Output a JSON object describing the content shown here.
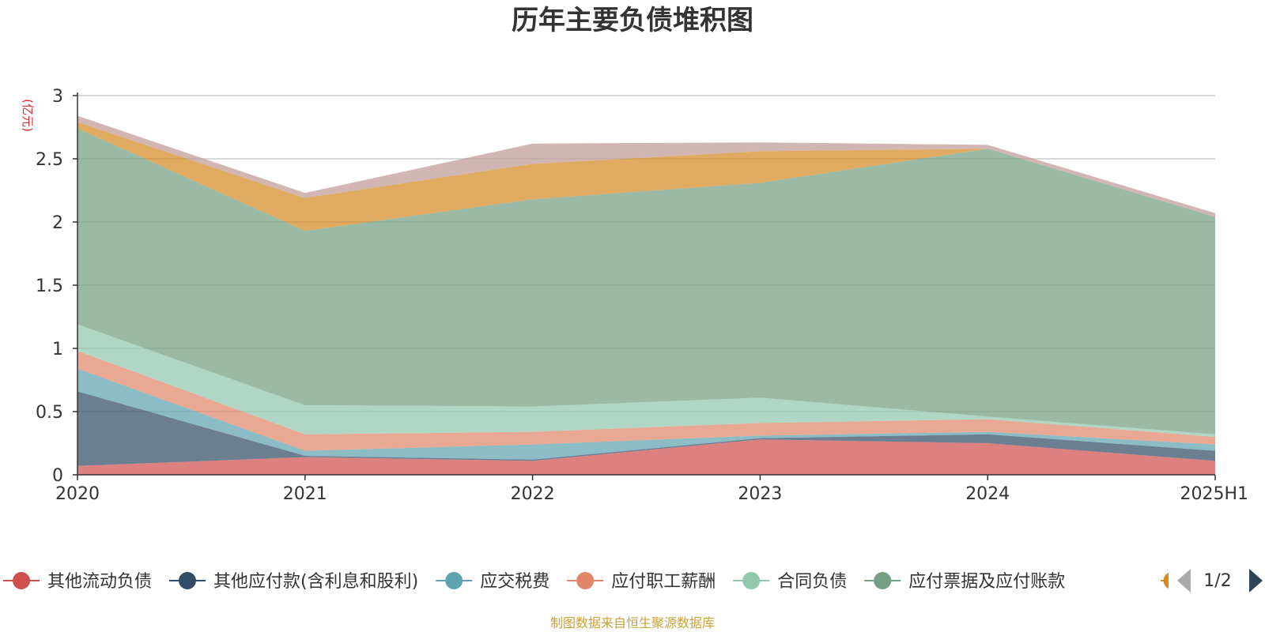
{
  "chart_data": {
    "type": "area",
    "stacked": true,
    "title": "历年主要负债堆积图",
    "ylabel": "(亿元)",
    "xlabel": "",
    "categories": [
      "2020",
      "2021",
      "2022",
      "2023",
      "2024",
      "2025H1"
    ],
    "ylim": [
      0,
      3
    ],
    "yticks": [
      "0",
      "0.5",
      "1",
      "1.5",
      "2",
      "2.5",
      "3"
    ],
    "grid": true,
    "legend_position": "bottom",
    "series": [
      {
        "name": "其他流动负债",
        "color": "#d0504f",
        "values": [
          0.07,
          0.14,
          0.11,
          0.28,
          0.25,
          0.11
        ]
      },
      {
        "name": "其他应付款(含利息和股利)",
        "color": "#334d66",
        "values": [
          0.59,
          0.01,
          0.01,
          0.01,
          0.07,
          0.08
        ]
      },
      {
        "name": "应交税费",
        "color": "#5fa2b0",
        "values": [
          0.18,
          0.04,
          0.12,
          0.02,
          0.02,
          0.05
        ]
      },
      {
        "name": "应付职工薪酬",
        "color": "#e0866a",
        "values": [
          0.14,
          0.13,
          0.1,
          0.1,
          0.1,
          0.06
        ]
      },
      {
        "name": "合同负债",
        "color": "#91c7ae",
        "values": [
          0.21,
          0.23,
          0.2,
          0.2,
          0.02,
          0.02
        ]
      },
      {
        "name": "应付票据及应付账款",
        "color": "#749f83",
        "values": [
          1.55,
          1.38,
          1.64,
          1.7,
          2.12,
          1.72
        ]
      },
      {
        "name": "",
        "color": "#d48b23",
        "values": [
          0.05,
          0.26,
          0.28,
          0.25,
          0.0,
          0.0
        ]
      },
      {
        "name": "",
        "color": "#bf9a97",
        "values": [
          0.05,
          0.04,
          0.16,
          0.07,
          0.03,
          0.03
        ]
      }
    ]
  },
  "legend": {
    "pager": "1/2"
  },
  "footer": {
    "source": "制图数据来自恒生聚源数据库"
  }
}
